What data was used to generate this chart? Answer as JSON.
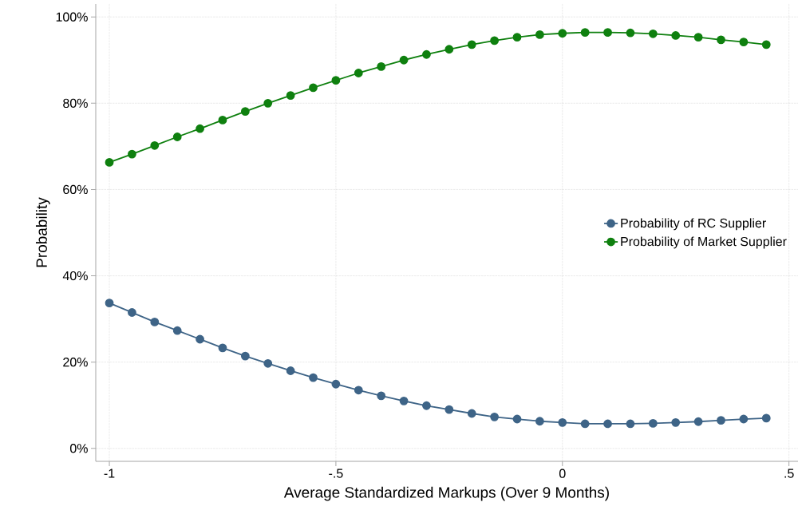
{
  "chart_data": {
    "type": "line",
    "xlabel": "Average Standardized Markups (Over 9 Months)",
    "ylabel": "Probability",
    "x": [
      -1,
      -0.95,
      -0.9,
      -0.85,
      -0.8,
      -0.75,
      -0.7,
      -0.65,
      -0.6,
      -0.55,
      -0.5,
      -0.45,
      -0.4,
      -0.35,
      -0.3,
      -0.25,
      -0.2,
      -0.15,
      -0.1,
      -0.05,
      0,
      0.05,
      0.1,
      0.15,
      0.2,
      0.25,
      0.3,
      0.35,
      0.4,
      0.45
    ],
    "series": [
      {
        "name": "Probability of RC Supplier",
        "color": "#3e6487",
        "values": [
          33.7,
          31.5,
          29.3,
          27.3,
          25.3,
          23.3,
          21.4,
          19.7,
          18.0,
          16.4,
          14.9,
          13.5,
          12.2,
          11.0,
          9.9,
          9.0,
          8.1,
          7.3,
          6.8,
          6.3,
          6.0,
          5.7,
          5.7,
          5.7,
          5.8,
          6.0,
          6.2,
          6.5,
          6.8,
          7.0
        ]
      },
      {
        "name": "Probability of Market Supplier",
        "color": "#0f800f",
        "values": [
          66.3,
          68.2,
          70.2,
          72.2,
          74.1,
          76.1,
          78.1,
          80.0,
          81.8,
          83.6,
          85.3,
          87.0,
          88.5,
          90.0,
          91.3,
          92.5,
          93.6,
          94.5,
          95.3,
          95.9,
          96.2,
          96.4,
          96.4,
          96.3,
          96.1,
          95.7,
          95.3,
          94.7,
          94.2,
          93.6
        ]
      }
    ],
    "xlim": [
      -1.03,
      0.52
    ],
    "ylim": [
      -3,
      103
    ],
    "xticks": [
      {
        "value": -1,
        "label": "-1"
      },
      {
        "value": -0.5,
        "label": "-.5"
      },
      {
        "value": 0,
        "label": "0"
      },
      {
        "value": 0.5,
        "label": ".5"
      }
    ],
    "yticks": [
      {
        "value": 0,
        "label": "0%"
      },
      {
        "value": 20,
        "label": "20%"
      },
      {
        "value": 40,
        "label": "40%"
      },
      {
        "value": 60,
        "label": "60%"
      },
      {
        "value": 80,
        "label": "80%"
      },
      {
        "value": 100,
        "label": "100%"
      }
    ],
    "grid": true,
    "legend": "right",
    "marker": "circle",
    "line_style": "solid"
  }
}
